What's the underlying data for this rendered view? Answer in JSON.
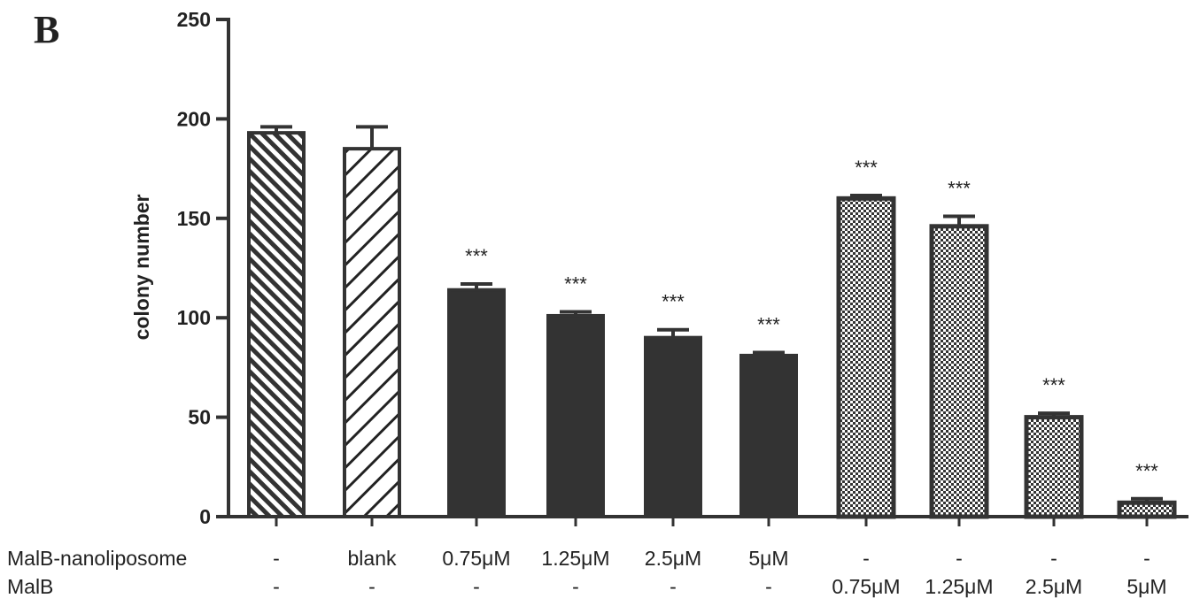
{
  "panel_label": "B",
  "chart_data": {
    "type": "bar",
    "title": "",
    "xlabel": "",
    "ylabel": "colony number",
    "ylim": [
      0,
      250
    ],
    "yticks": [
      0,
      50,
      100,
      150,
      200,
      250
    ],
    "grid": false,
    "legend": "none",
    "row_labels": [
      "MalB-nanoliposome",
      "MalB"
    ],
    "rows": [
      [
        "-",
        "blank",
        "0.75μM",
        "1.25μM",
        "2.5μM",
        "5μM",
        "-",
        "-",
        "-",
        "-"
      ],
      [
        "-",
        "-",
        "-",
        "-",
        "-",
        "-",
        "0.75μM",
        "1.25μM",
        "2.5μM",
        "5μM"
      ]
    ],
    "values": [
      193,
      185,
      114,
      101,
      90,
      81,
      160,
      146,
      50,
      7
    ],
    "errors": [
      3,
      11,
      3,
      2,
      4,
      1.5,
      1.5,
      5,
      2,
      2
    ],
    "significance": [
      "",
      "",
      "***",
      "***",
      "***",
      "***",
      "***",
      "***",
      "***",
      "***"
    ],
    "patterns": [
      "backslash",
      "slash",
      "solid",
      "solid",
      "solid",
      "solid",
      "checker",
      "checker",
      "checker",
      "checker"
    ],
    "colors": {
      "bar_fill": "#333333",
      "outline": "#333333",
      "background": "#ffffff"
    }
  }
}
